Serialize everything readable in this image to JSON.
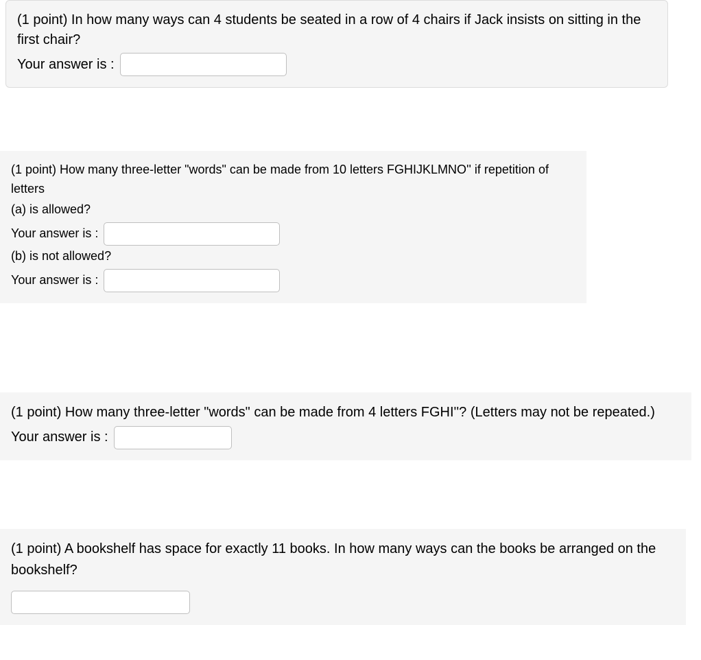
{
  "q1": {
    "prompt": "(1 point) In how many ways can 4 students be seated in a row of 4 chairs if Jack insists on sitting in the first chair?",
    "answer_label": "Your answer is :",
    "answer_value": ""
  },
  "q2": {
    "prompt_line1": "(1 point) How many three-letter \"words\" can be made from 10 letters FGHIJKLMNO'' if repetition of letters",
    "part_a_label": "(a) is allowed?",
    "answer_label_a": "Your answer is :",
    "answer_value_a": "",
    "part_b_label": "(b) is not allowed?",
    "answer_label_b": "Your answer is :",
    "answer_value_b": ""
  },
  "q3": {
    "prompt": "(1 point) How many three-letter \"words\" can be made from 4 letters FGHI''? (Letters may not be repeated.)",
    "answer_label": "Your answer is :",
    "answer_value": ""
  },
  "q4": {
    "prompt": "(1 point) A bookshelf has space for exactly 11 books. In how many ways can the books be arranged on the bookshelf?",
    "answer_value": ""
  },
  "colors": {
    "box_bg": "#f5f5f5",
    "box_border": "#dcdcdc",
    "input_border": "#bfbfbf",
    "text": "#000000",
    "page_bg": "#ffffff"
  }
}
